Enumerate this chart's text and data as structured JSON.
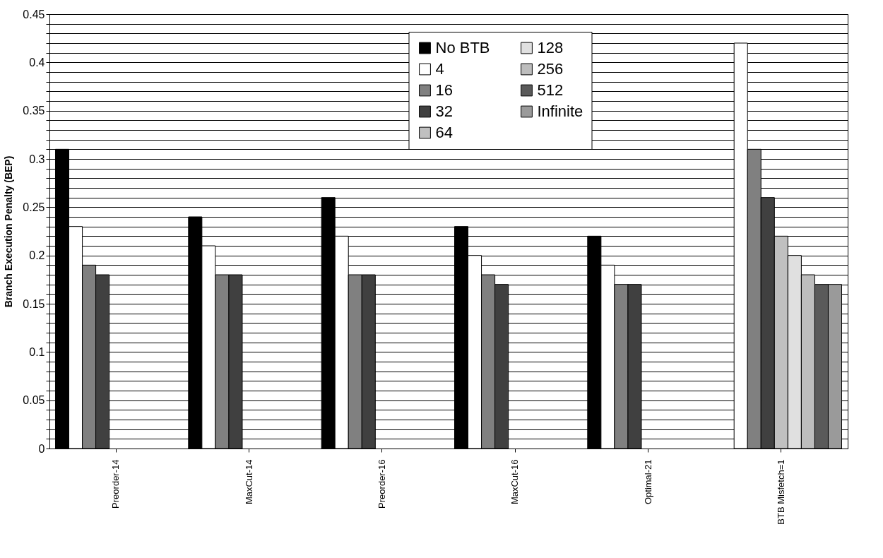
{
  "chart_data": {
    "type": "bar",
    "ylabel": "Branch Execution Penalty (BEP)",
    "categories": [
      "Preorder-14",
      "MaxCut-14",
      "Preorder-16",
      "MaxCut-16",
      "Optimal-21",
      "BTB Misfetch=1"
    ],
    "series": [
      {
        "name": "No BTB",
        "color": "#000000",
        "values": [
          0.31,
          0.24,
          0.26,
          0.23,
          0.22,
          null
        ]
      },
      {
        "name": "4",
        "color": "#ffffff",
        "values": [
          0.23,
          0.21,
          0.22,
          0.2,
          0.19,
          0.42
        ]
      },
      {
        "name": "16",
        "color": "#808080",
        "values": [
          0.19,
          0.18,
          0.18,
          0.18,
          0.17,
          0.31
        ]
      },
      {
        "name": "32",
        "color": "#404040",
        "values": [
          0.18,
          0.18,
          0.18,
          0.17,
          0.17,
          0.26
        ]
      },
      {
        "name": "64",
        "color": "#c0c0c0",
        "values": [
          null,
          null,
          null,
          null,
          null,
          0.22
        ]
      },
      {
        "name": "128",
        "color": "#e0e0e0",
        "values": [
          null,
          null,
          null,
          null,
          null,
          0.2
        ]
      },
      {
        "name": "256",
        "color": "#bdbdbd",
        "values": [
          null,
          null,
          null,
          null,
          null,
          0.18
        ]
      },
      {
        "name": "512",
        "color": "#5a5a5a",
        "values": [
          null,
          null,
          null,
          null,
          null,
          0.17
        ]
      },
      {
        "name": "Infinite",
        "color": "#9a9a9a",
        "values": [
          null,
          null,
          null,
          null,
          null,
          0.17
        ]
      }
    ],
    "ylim": [
      0,
      0.45
    ],
    "yticks": [
      0,
      {
        "value": 0.01,
        "label": null
      },
      {
        "value": 0.02,
        "label": null
      },
      {
        "value": 0.03,
        "label": null
      },
      {
        "value": 0.04,
        "label": null
      },
      0.05,
      {
        "value": 0.06,
        "label": null
      },
      {
        "value": 0.07,
        "label": null
      },
      {
        "value": 0.08,
        "label": null
      },
      {
        "value": 0.09,
        "label": null
      },
      0.1,
      {
        "value": 0.11,
        "label": null
      },
      {
        "value": 0.12,
        "label": null
      },
      {
        "value": 0.13,
        "label": null
      },
      {
        "value": 0.14,
        "label": null
      },
      0.15,
      {
        "value": 0.16,
        "label": null
      },
      {
        "value": 0.17,
        "label": null
      },
      {
        "value": 0.18,
        "label": null
      },
      {
        "value": 0.19,
        "label": null
      },
      0.2,
      {
        "value": 0.21,
        "label": null
      },
      {
        "value": 0.22,
        "label": null
      },
      {
        "value": 0.23,
        "label": null
      },
      {
        "value": 0.24,
        "label": null
      },
      0.25,
      {
        "value": 0.26,
        "label": null
      },
      {
        "value": 0.27,
        "label": null
      },
      {
        "value": 0.28,
        "label": null
      },
      {
        "value": 0.29,
        "label": null
      },
      0.3,
      {
        "value": 0.31,
        "label": null
      },
      {
        "value": 0.32,
        "label": null
      },
      {
        "value": 0.33,
        "label": null
      },
      {
        "value": 0.34,
        "label": null
      },
      0.35,
      {
        "value": 0.36,
        "label": null
      },
      {
        "value": 0.37,
        "label": null
      },
      {
        "value": 0.38,
        "label": null
      },
      {
        "value": 0.39,
        "label": null
      },
      0.4,
      {
        "value": 0.41,
        "label": null
      },
      {
        "value": 0.42,
        "label": null
      },
      {
        "value": 0.43,
        "label": null
      },
      {
        "value": 0.44,
        "label": null
      },
      0.45
    ],
    "grid": "y",
    "legend": "top"
  }
}
